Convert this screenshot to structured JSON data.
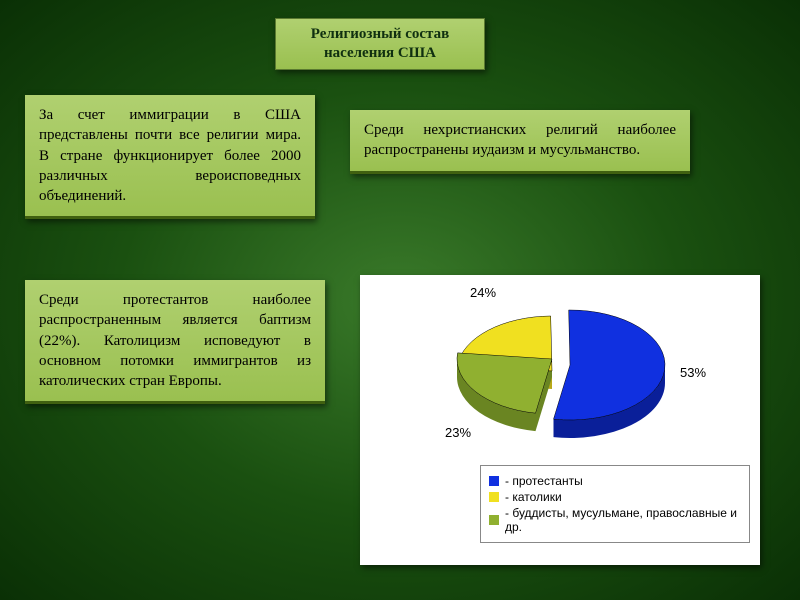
{
  "title": "Религиозный состав населения США",
  "boxes": {
    "b1": "За счет иммиграции в США представлены почти все религии мира. В стране функционирует более 2000 различных вероисповедных объединений.",
    "b2": "Среди нехристианских религий наиболее распространены иудаизм и мусульманство.",
    "b3": "Среди протестантов наиболее распространенным является баптизм (22%). Католицизм исповедуют в основном потомки иммигрантов из католических стран Европы."
  },
  "pie": {
    "type": "pie-3d",
    "background_color": "#ffffff",
    "slices": [
      {
        "label": "- протестанты",
        "value": 53,
        "pct_text": "53%",
        "color": "#1030e0",
        "side_color": "#0a1f99"
      },
      {
        "label": "- католики",
        "value": 23,
        "pct_text": "23%",
        "color": "#f0e020",
        "side_color": "#b8a818"
      },
      {
        "label": "- буддисты, мусульмане, православные и др.",
        "value": 24,
        "pct_text": "24%",
        "color": "#90b030",
        "side_color": "#6a8522"
      }
    ],
    "label_fontsize": 13,
    "legend_fontsize": 12,
    "legend_border": "#888888"
  }
}
